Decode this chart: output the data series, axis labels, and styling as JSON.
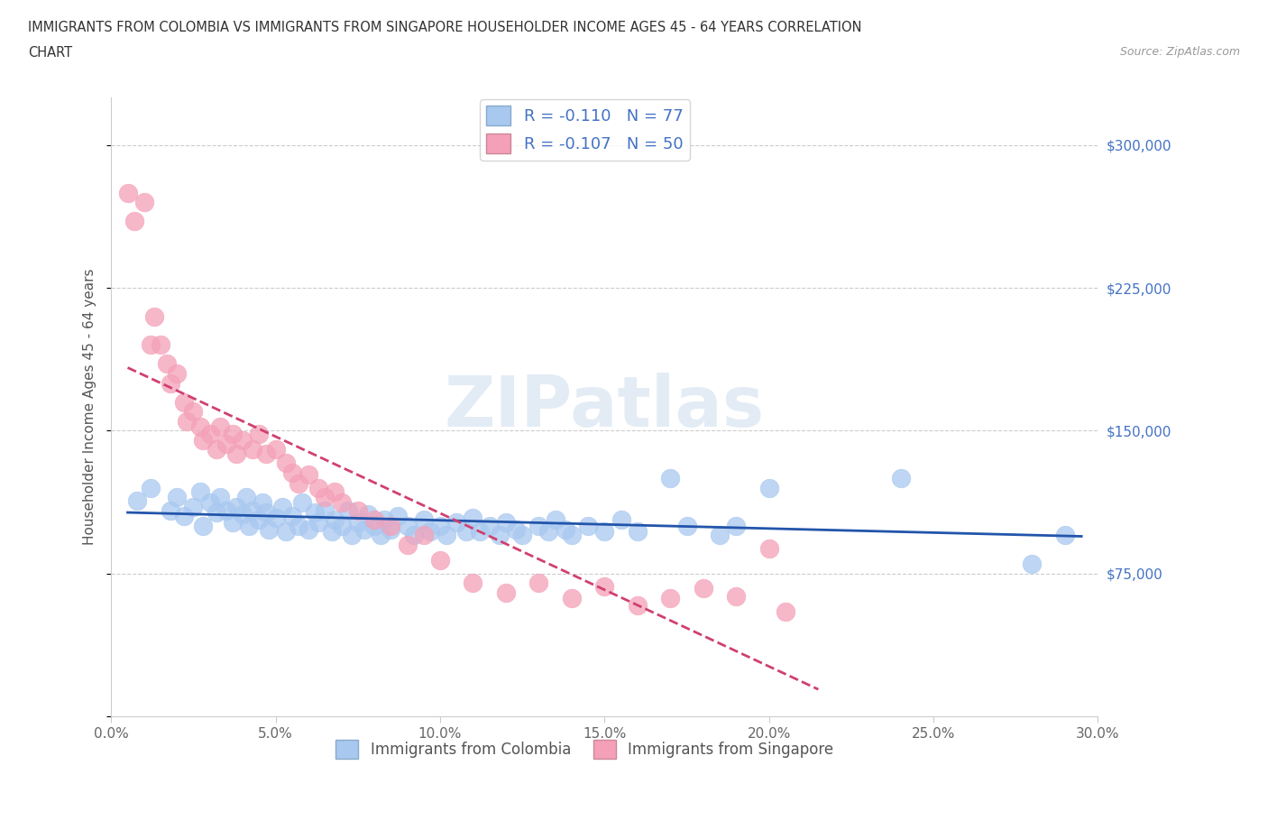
{
  "title_line1": "IMMIGRANTS FROM COLOMBIA VS IMMIGRANTS FROM SINGAPORE HOUSEHOLDER INCOME AGES 45 - 64 YEARS CORRELATION",
  "title_line2": "CHART",
  "source": "Source: ZipAtlas.com",
  "ylabel": "Householder Income Ages 45 - 64 years",
  "xlim": [
    0,
    0.3
  ],
  "ylim": [
    0,
    325000
  ],
  "xticks": [
    0.0,
    0.05,
    0.1,
    0.15,
    0.2,
    0.25,
    0.3
  ],
  "xtick_labels": [
    "0.0%",
    "5.0%",
    "10.0%",
    "15.0%",
    "20.0%",
    "25.0%",
    "30.0%"
  ],
  "yticks": [
    0,
    75000,
    150000,
    225000,
    300000
  ],
  "ytick_labels": [
    "",
    "$75,000",
    "$150,000",
    "$225,000",
    "$300,000"
  ],
  "colombia_color": "#A8C8F0",
  "singapore_color": "#F4A0B8",
  "colombia_R": -0.11,
  "colombia_N": 77,
  "singapore_R": -0.107,
  "singapore_N": 50,
  "colombia_trend_color": "#2255AA",
  "singapore_trend_color": "#D04070",
  "watermark": "ZIPatlas",
  "colombia_x": [
    0.008,
    0.012,
    0.018,
    0.02,
    0.022,
    0.025,
    0.027,
    0.028,
    0.03,
    0.032,
    0.033,
    0.035,
    0.037,
    0.038,
    0.04,
    0.041,
    0.042,
    0.043,
    0.045,
    0.046,
    0.047,
    0.048,
    0.05,
    0.052,
    0.053,
    0.055,
    0.057,
    0.058,
    0.06,
    0.062,
    0.063,
    0.065,
    0.067,
    0.068,
    0.07,
    0.072,
    0.073,
    0.075,
    0.077,
    0.078,
    0.08,
    0.082,
    0.083,
    0.085,
    0.087,
    0.09,
    0.092,
    0.095,
    0.097,
    0.1,
    0.102,
    0.105,
    0.108,
    0.11,
    0.112,
    0.115,
    0.118,
    0.12,
    0.123,
    0.125,
    0.13,
    0.133,
    0.135,
    0.138,
    0.14,
    0.145,
    0.15,
    0.155,
    0.16,
    0.17,
    0.175,
    0.185,
    0.19,
    0.2,
    0.24,
    0.28,
    0.29
  ],
  "colombia_y": [
    113000,
    120000,
    108000,
    115000,
    105000,
    110000,
    118000,
    100000,
    112000,
    107000,
    115000,
    108000,
    102000,
    110000,
    106000,
    115000,
    100000,
    108000,
    103000,
    112000,
    107000,
    98000,
    104000,
    110000,
    97000,
    105000,
    100000,
    112000,
    98000,
    107000,
    102000,
    108000,
    97000,
    103000,
    100000,
    108000,
    95000,
    102000,
    98000,
    106000,
    100000,
    95000,
    103000,
    98000,
    105000,
    100000,
    95000,
    103000,
    97000,
    100000,
    95000,
    102000,
    97000,
    104000,
    97000,
    100000,
    95000,
    102000,
    98000,
    95000,
    100000,
    97000,
    103000,
    98000,
    95000,
    100000,
    97000,
    103000,
    97000,
    125000,
    100000,
    95000,
    100000,
    120000,
    125000,
    80000,
    95000
  ],
  "singapore_x": [
    0.005,
    0.007,
    0.01,
    0.012,
    0.013,
    0.015,
    0.017,
    0.018,
    0.02,
    0.022,
    0.023,
    0.025,
    0.027,
    0.028,
    0.03,
    0.032,
    0.033,
    0.035,
    0.037,
    0.038,
    0.04,
    0.043,
    0.045,
    0.047,
    0.05,
    0.053,
    0.055,
    0.057,
    0.06,
    0.063,
    0.065,
    0.068,
    0.07,
    0.075,
    0.08,
    0.085,
    0.09,
    0.095,
    0.1,
    0.11,
    0.12,
    0.13,
    0.14,
    0.15,
    0.16,
    0.17,
    0.18,
    0.19,
    0.2,
    0.205
  ],
  "singapore_y": [
    275000,
    260000,
    270000,
    195000,
    210000,
    195000,
    185000,
    175000,
    180000,
    165000,
    155000,
    160000,
    152000,
    145000,
    148000,
    140000,
    152000,
    143000,
    148000,
    138000,
    145000,
    140000,
    148000,
    138000,
    140000,
    133000,
    128000,
    122000,
    127000,
    120000,
    115000,
    118000,
    112000,
    108000,
    103000,
    100000,
    90000,
    95000,
    82000,
    70000,
    65000,
    70000,
    62000,
    68000,
    58000,
    62000,
    67000,
    63000,
    88000,
    55000
  ]
}
